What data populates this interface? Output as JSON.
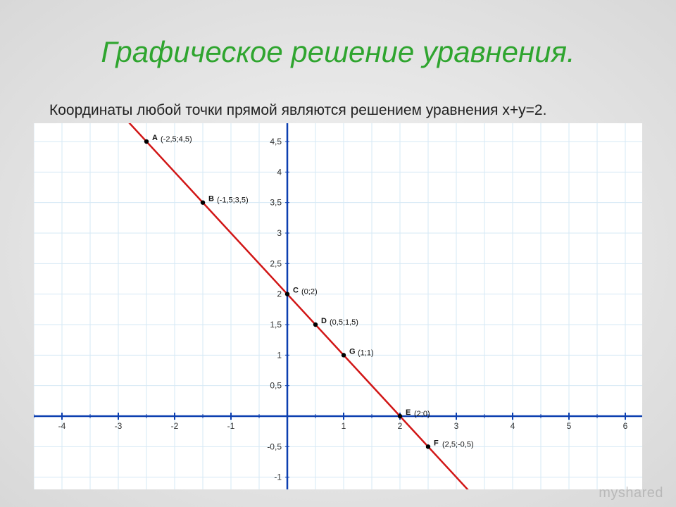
{
  "title": "Графическое решение уравнения.",
  "subtitle": "Координаты любой точки прямой являются решением уравнения x+y=2.",
  "watermark": "myshared",
  "chart": {
    "type": "line",
    "background_color": "#ffffff",
    "grid_color": "#d5e8f5",
    "axis_color": "#0c3fb0",
    "line_color": "#d11616",
    "point_color": "#000000",
    "xlim": [
      -4.5,
      6.3
    ],
    "ylim": [
      -1.2,
      4.8
    ],
    "x_ticks": [
      -4,
      -3,
      -2,
      -1,
      1,
      2,
      3,
      4,
      5,
      6
    ],
    "y_ticks": [
      -1,
      -0.5,
      0.5,
      1,
      1.5,
      2,
      2.5,
      3,
      3.5,
      4,
      4.5
    ],
    "line": {
      "from": [
        -3.0,
        5.0
      ],
      "to": [
        3.3,
        -1.3
      ],
      "width": 2.5
    },
    "points": [
      {
        "letter": "A",
        "x": -2.5,
        "y": 4.5,
        "coord": "(-2,5;4,5)"
      },
      {
        "letter": "B",
        "x": -1.5,
        "y": 3.5,
        "coord": "(-1,5;3,5)"
      },
      {
        "letter": "C",
        "x": 0,
        "y": 2,
        "coord": "(0;2)"
      },
      {
        "letter": "D",
        "x": 0.5,
        "y": 1.5,
        "coord": "(0,5;1,5)"
      },
      {
        "letter": "G",
        "x": 1,
        "y": 1,
        "coord": "(1;1)"
      },
      {
        "letter": "E",
        "x": 2,
        "y": 0,
        "coord": "(2;0)"
      },
      {
        "letter": "F",
        "x": 2.5,
        "y": -0.5,
        "coord": "(2,5;-0,5)"
      }
    ],
    "grid_step": 0.5
  }
}
